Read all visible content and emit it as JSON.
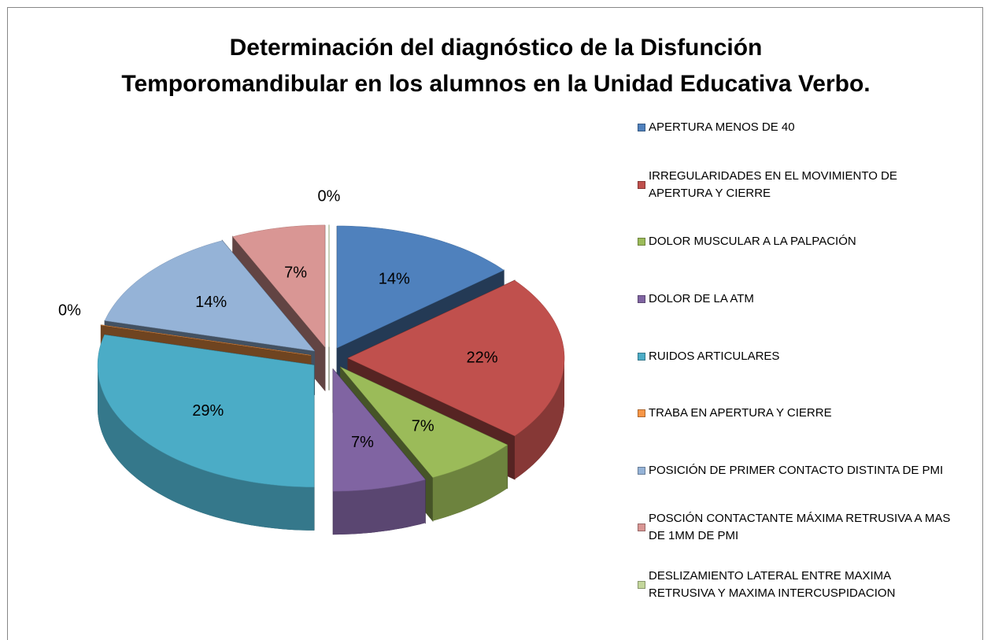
{
  "chart_data": {
    "type": "pie",
    "title": "Determinación del diagnóstico de la Disfunción Temporomandibular en los alumnos en la Unidad Educativa Verbo.",
    "categories": [
      "APERTURA  MENOS DE 40",
      "IRREGULARIDADES EN EL MOVIMIENTO DE APERTURA Y CIERRE",
      "DOLOR MUSCULAR A LA PALPACIÓN",
      "DOLOR DE LA ATM",
      "RUIDOS ARTICULARES",
      "TRABA EN APERTURA Y CIERRE",
      "POSICIÓN DE PRIMER CONTACTO DISTINTA DE PMI",
      "POSCIÓN CONTACTANTE MÁXIMA RETRUSIVA A MAS DE 1MM DE PMI",
      "DESLIZAMIENTO LATERAL ENTRE MAXIMA RETRUSIVA Y MAXIMA INTERCUSPIDACION"
    ],
    "values": [
      14,
      22,
      7,
      7,
      29,
      0,
      14,
      7,
      0
    ],
    "value_labels": [
      "14%",
      "22%",
      "7%",
      "7%",
      "29%",
      "0%",
      "14%",
      "7%",
      "0%"
    ],
    "colors": [
      "#4f81bd",
      "#c0504d",
      "#9bbb59",
      "#8064a2",
      "#4bacc6",
      "#f79646",
      "#95b3d7",
      "#d99694",
      "#c3d69b"
    ],
    "legend": "right"
  }
}
